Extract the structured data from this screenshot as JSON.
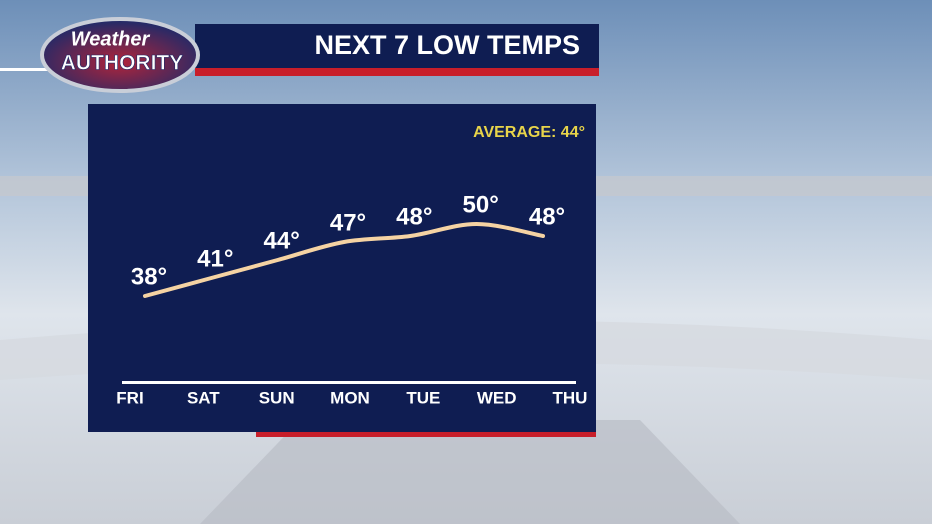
{
  "logo": {
    "line1": "Weather",
    "line2": "AUTHORITY"
  },
  "chart_data": {
    "type": "line",
    "title": "NEXT 7 LOW TEMPS",
    "annotation": "AVERAGE: 44°",
    "categories": [
      "FRI",
      "SAT",
      "SUN",
      "MON",
      "TUE",
      "WED",
      "THU"
    ],
    "values": [
      38,
      41,
      44,
      47,
      48,
      50,
      48
    ],
    "value_labels": [
      "38°",
      "41°",
      "44°",
      "47°",
      "48°",
      "50°",
      "48°"
    ],
    "color": "#f5d3a3"
  }
}
